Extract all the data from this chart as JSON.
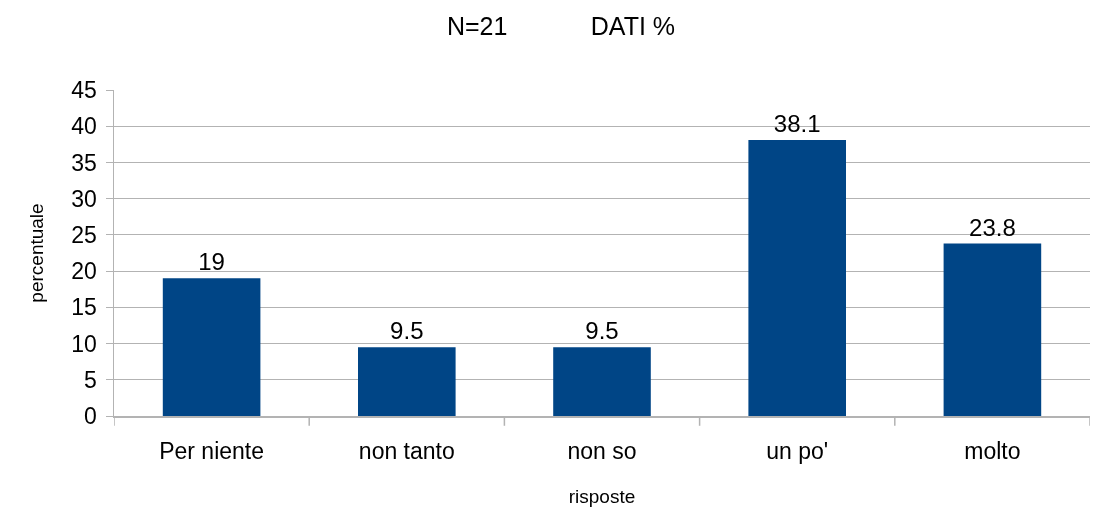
{
  "chart_data": {
    "type": "bar",
    "title": "N=21            DATI %",
    "xlabel": "risposte",
    "ylabel": "percentuale",
    "categories": [
      "Per niente",
      "non tanto",
      "non so",
      "un po'",
      "molto"
    ],
    "values": [
      19,
      9.5,
      9.5,
      38.1,
      23.8
    ],
    "color": "#004586",
    "ylim": [
      0,
      45
    ],
    "yticks": [
      0,
      5,
      10,
      15,
      20,
      25,
      30,
      35,
      40,
      45
    ],
    "grid": "y",
    "data_labels": true
  }
}
